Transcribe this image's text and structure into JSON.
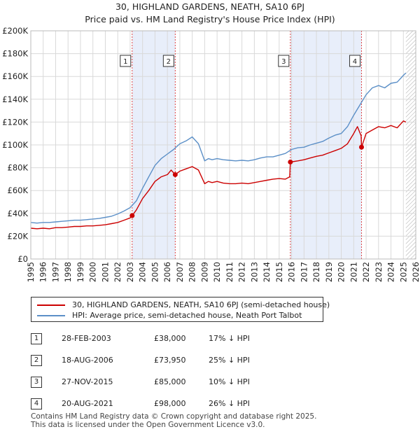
{
  "title_line1": "30, HIGHLAND GARDENS, NEATH, SA10 6PJ",
  "title_line2": "Price paid vs. HM Land Registry's House Price Index (HPI)",
  "legend": {
    "property": "30, HIGHLAND GARDENS, NEATH, SA10 6PJ (semi-detached house)",
    "hpi": "HPI: Average price, semi-detached house, Neath Port Talbot"
  },
  "colors": {
    "property": "#cc0000",
    "hpi": "#5b8fc7",
    "band": "#e8eefa",
    "grid": "#d9d9d9",
    "future_hatch": "#aaaaaa"
  },
  "transactions": [
    {
      "num": "1",
      "date": "28-FEB-2003",
      "price": "£38,000",
      "hpi": "17% ↓ HPI"
    },
    {
      "num": "2",
      "date": "18-AUG-2006",
      "price": "£73,950",
      "hpi": "25% ↓ HPI"
    },
    {
      "num": "3",
      "date": "27-NOV-2015",
      "price": "£85,000",
      "hpi": "10% ↓ HPI"
    },
    {
      "num": "4",
      "date": "20-AUG-2021",
      "price": "£98,000",
      "hpi": "26% ↓ HPI"
    }
  ],
  "footer_line1": "Contains HM Land Registry data © Crown copyright and database right 2025.",
  "footer_line2": "This data is licensed under the Open Government Licence v3.0.",
  "chart_data": {
    "type": "line",
    "title": "30, HIGHLAND GARDENS, NEATH, SA10 6PJ — Price paid vs. HM Land Registry's House Price Index (HPI)",
    "xlabel": "",
    "ylabel": "",
    "xlim": [
      1995,
      2026
    ],
    "ylim": [
      0,
      200000
    ],
    "x_ticks": [
      "1995",
      "1996",
      "1997",
      "1998",
      "1999",
      "2000",
      "2001",
      "2002",
      "2003",
      "2004",
      "2005",
      "2006",
      "2007",
      "2008",
      "2009",
      "2010",
      "2011",
      "2012",
      "2013",
      "2014",
      "2015",
      "2016",
      "2017",
      "2018",
      "2019",
      "2020",
      "2021",
      "2022",
      "2023",
      "2024",
      "2025",
      "2026"
    ],
    "y_ticks": [
      {
        "value": 0,
        "label": "£0"
      },
      {
        "value": 20000,
        "label": "£20K"
      },
      {
        "value": 40000,
        "label": "£40K"
      },
      {
        "value": 60000,
        "label": "£60K"
      },
      {
        "value": 80000,
        "label": "£80K"
      },
      {
        "value": 100000,
        "label": "£100K"
      },
      {
        "value": 120000,
        "label": "£120K"
      },
      {
        "value": 140000,
        "label": "£140K"
      },
      {
        "value": 160000,
        "label": "£160K"
      },
      {
        "value": 180000,
        "label": "£180K"
      },
      {
        "value": 200000,
        "label": "£200K"
      }
    ],
    "grid": true,
    "sale_bands": [
      [
        2003.16,
        2006.63
      ],
      [
        2015.9,
        2021.63
      ]
    ],
    "future_from": 2025.2,
    "series": [
      {
        "name": "30, HIGHLAND GARDENS, NEATH, SA10 6PJ (semi-detached house)",
        "x": [
          1995.0,
          1995.5,
          1996.0,
          1996.5,
          1997.0,
          1997.5,
          1998.0,
          1998.5,
          1999.0,
          1999.5,
          2000.0,
          2000.5,
          2001.0,
          2001.5,
          2002.0,
          2002.5,
          2003.0,
          2003.16,
          2003.5,
          2004.0,
          2004.5,
          2005.0,
          2005.5,
          2006.0,
          2006.3,
          2006.63,
          2007.0,
          2007.5,
          2008.0,
          2008.5,
          2009.0,
          2009.3,
          2009.6,
          2010.0,
          2010.5,
          2011.0,
          2011.5,
          2012.0,
          2012.5,
          2013.0,
          2013.5,
          2014.0,
          2014.5,
          2015.0,
          2015.5,
          2015.85,
          2015.9,
          2016.5,
          2017.0,
          2017.5,
          2018.0,
          2018.5,
          2019.0,
          2019.5,
          2020.0,
          2020.5,
          2021.0,
          2021.3,
          2021.6,
          2021.63,
          2022.0,
          2022.5,
          2023.0,
          2023.5,
          2024.0,
          2024.5,
          2025.0,
          2025.2
        ],
        "values": [
          27000,
          26500,
          27000,
          26500,
          27500,
          27500,
          28000,
          28500,
          28500,
          29000,
          29000,
          29500,
          30000,
          31000,
          32000,
          34000,
          36000,
          38000,
          43000,
          53000,
          60000,
          68000,
          72000,
          74000,
          78000,
          73950,
          77000,
          79000,
          81000,
          78000,
          66000,
          68000,
          67000,
          68000,
          66500,
          66000,
          66000,
          66500,
          66000,
          67000,
          68000,
          69000,
          70000,
          70500,
          70000,
          72000,
          85000,
          86000,
          87000,
          88500,
          90000,
          91000,
          93000,
          95000,
          97000,
          101000,
          110000,
          116000,
          108000,
          98000,
          110000,
          113000,
          116000,
          115000,
          117000,
          115000,
          121000,
          120000
        ]
      },
      {
        "name": "HPI: Average price, semi-detached house, Neath Port Talbot",
        "x": [
          1995.0,
          1995.5,
          1996.0,
          1996.5,
          1997.0,
          1997.5,
          1998.0,
          1998.5,
          1999.0,
          1999.5,
          2000.0,
          2000.5,
          2001.0,
          2001.5,
          2002.0,
          2002.5,
          2003.0,
          2003.5,
          2004.0,
          2004.5,
          2005.0,
          2005.5,
          2006.0,
          2006.5,
          2007.0,
          2007.5,
          2008.0,
          2008.5,
          2009.0,
          2009.3,
          2009.6,
          2010.0,
          2010.5,
          2011.0,
          2011.5,
          2012.0,
          2012.5,
          2013.0,
          2013.5,
          2014.0,
          2014.5,
          2015.0,
          2015.5,
          2016.0,
          2016.5,
          2017.0,
          2017.5,
          2018.0,
          2018.5,
          2019.0,
          2019.5,
          2020.0,
          2020.5,
          2021.0,
          2021.5,
          2022.0,
          2022.5,
          2023.0,
          2023.5,
          2024.0,
          2024.5,
          2025.0,
          2025.2
        ],
        "values": [
          32000,
          31500,
          32000,
          32000,
          32500,
          33000,
          33500,
          34000,
          34000,
          34500,
          35000,
          35500,
          36500,
          37500,
          39500,
          42000,
          45000,
          51000,
          62000,
          72000,
          82000,
          88000,
          92000,
          96000,
          101000,
          103500,
          107000,
          101000,
          86000,
          88000,
          87000,
          88000,
          87000,
          86500,
          86000,
          86500,
          86000,
          87000,
          88500,
          89500,
          89500,
          91000,
          92500,
          96000,
          97500,
          98000,
          100000,
          101500,
          103000,
          106000,
          108500,
          110000,
          116000,
          126000,
          135000,
          144000,
          150000,
          152000,
          150000,
          154000,
          155000,
          161000,
          163000
        ]
      }
    ],
    "markers": [
      {
        "label": "1",
        "x": 2003.16,
        "y": 38000
      },
      {
        "label": "2",
        "x": 2006.63,
        "y": 73950
      },
      {
        "label": "3",
        "x": 2015.9,
        "y": 85000
      },
      {
        "label": "4",
        "x": 2021.63,
        "y": 98000
      }
    ]
  }
}
